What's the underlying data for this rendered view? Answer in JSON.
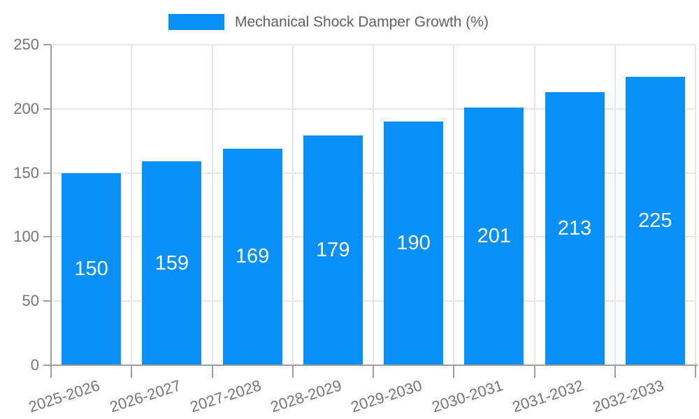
{
  "chart_data": {
    "type": "bar",
    "title": "",
    "legend_label": "Mechanical Shock Damper Growth (%)",
    "legend_position": "top-center",
    "categories": [
      "2025-2026",
      "2026-2027",
      "2027-2028",
      "2028-2029",
      "2029-2030",
      "2030-2031",
      "2031-2032",
      "2032-2033"
    ],
    "values": [
      150,
      159,
      169,
      179,
      190,
      201,
      213,
      225
    ],
    "xlabel": "",
    "ylabel": "",
    "ylim": [
      0,
      250
    ],
    "yticks": [
      0,
      50,
      100,
      150,
      200,
      250
    ],
    "grid": true,
    "value_labels_inside_bars": true,
    "colors": {
      "bar": "#0890f8",
      "grid": "#e6e6e6",
      "axis": "#9e9e9e",
      "tick_text": "#757575",
      "legend_text": "#616161",
      "value_text": "#ffffff",
      "background": "#ffffff"
    }
  }
}
